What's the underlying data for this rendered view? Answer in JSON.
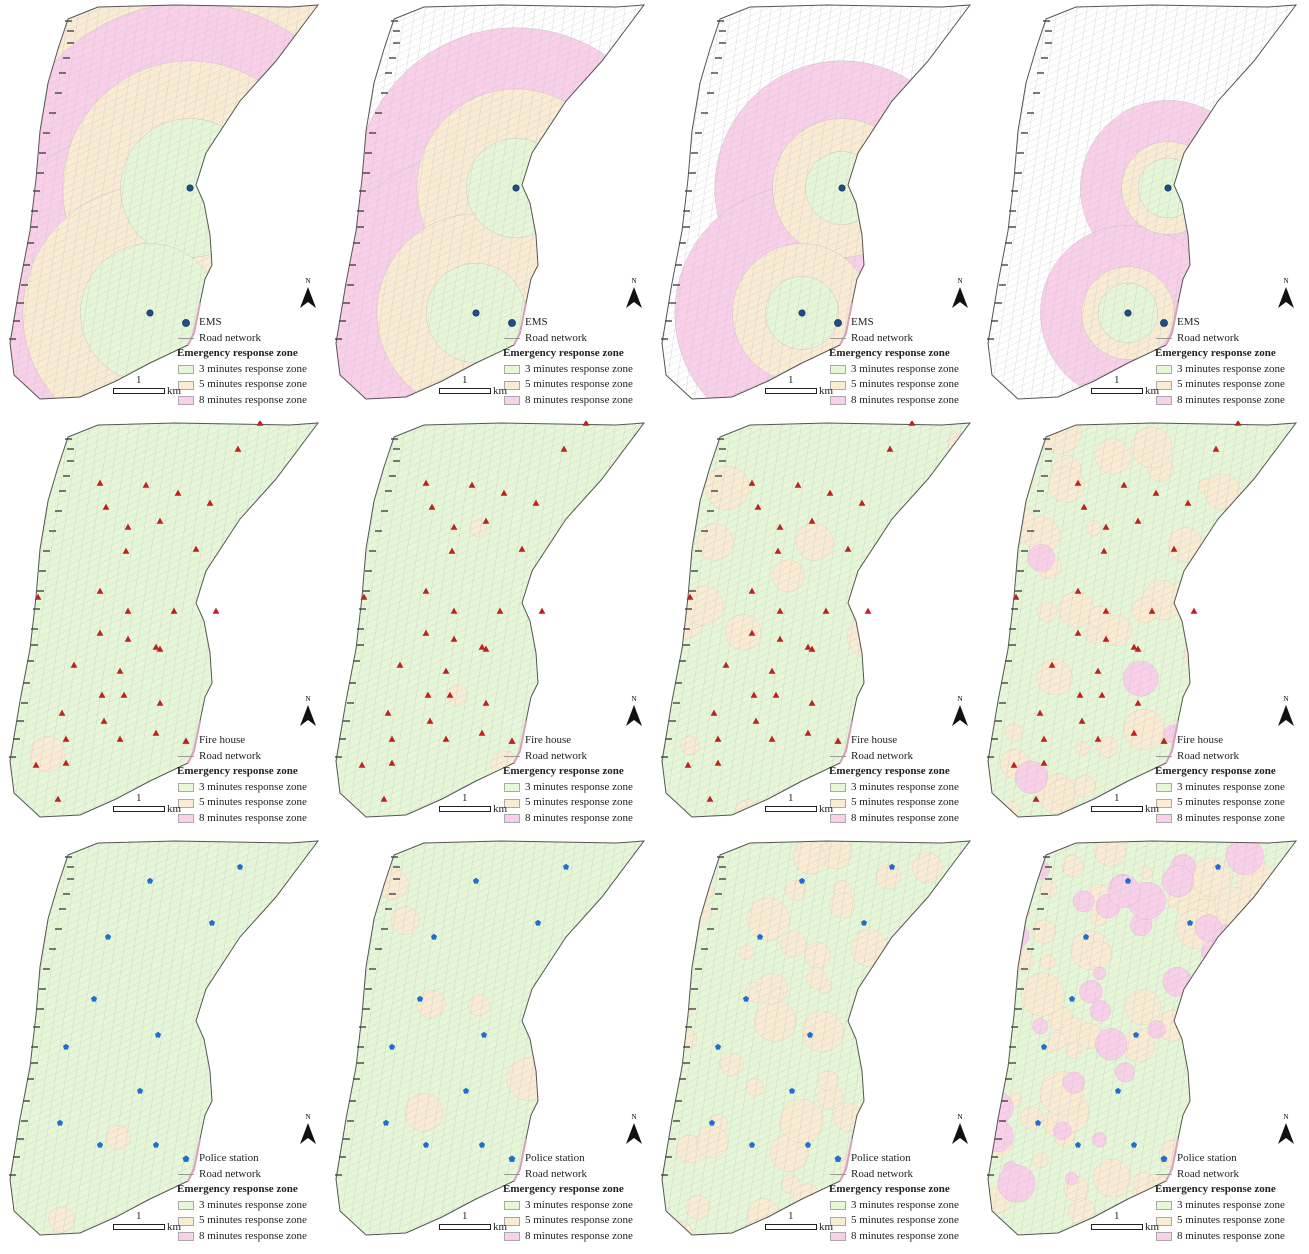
{
  "rows": [
    {
      "facility_label": "EMS",
      "facility_symbol": "circle",
      "facility_color": "#1f4e8c",
      "panels": [
        {
          "coverage": {
            "zone3": 0.3,
            "zone5": 0.35,
            "zone8": 0.35,
            "none": 0.0
          }
        },
        {
          "coverage": {
            "zone3": 0.18,
            "zone5": 0.3,
            "zone8": 0.37,
            "none": 0.15
          }
        },
        {
          "coverage": {
            "zone3": 0.1,
            "zone5": 0.2,
            "zone8": 0.35,
            "none": 0.35
          }
        },
        {
          "coverage": {
            "zone3": 0.06,
            "zone5": 0.1,
            "zone8": 0.25,
            "none": 0.59
          }
        }
      ]
    },
    {
      "facility_label": "Fire house",
      "facility_symbol": "triangle",
      "facility_color": "#c0201e",
      "panels": [
        {
          "coverage": {
            "zone3": 0.99,
            "zone5": 0.01,
            "zone8": 0.0,
            "none": 0.0
          }
        },
        {
          "coverage": {
            "zone3": 0.98,
            "zone5": 0.02,
            "zone8": 0.0,
            "none": 0.0
          }
        },
        {
          "coverage": {
            "zone3": 0.9,
            "zone5": 0.1,
            "zone8": 0.0,
            "none": 0.0
          }
        },
        {
          "coverage": {
            "zone3": 0.6,
            "zone5": 0.35,
            "zone8": 0.05,
            "none": 0.0
          }
        }
      ]
    },
    {
      "facility_label": "Police station",
      "facility_symbol": "pentagon",
      "facility_color": "#1f6fd1",
      "panels": [
        {
          "coverage": {
            "zone3": 0.98,
            "zone5": 0.02,
            "zone8": 0.0,
            "none": 0.0
          }
        },
        {
          "coverage": {
            "zone3": 0.92,
            "zone5": 0.08,
            "zone8": 0.0,
            "none": 0.0
          }
        },
        {
          "coverage": {
            "zone3": 0.6,
            "zone5": 0.4,
            "zone8": 0.0,
            "none": 0.0
          }
        },
        {
          "coverage": {
            "zone3": 0.3,
            "zone5": 0.45,
            "zone8": 0.25,
            "none": 0.0
          }
        }
      ]
    }
  ],
  "legend": {
    "road_label": "Road network",
    "zone_title": "Emergency response zone",
    "zones": [
      {
        "key": "zone3",
        "label": "3 minutes response zone",
        "color": "#e6f7d8"
      },
      {
        "key": "zone5",
        "label": "5 minutes response zone",
        "color": "#faebd3"
      },
      {
        "key": "zone8",
        "label": "8 minutes response zone",
        "color": "#f9cfe9"
      }
    ]
  },
  "scale_bar": {
    "value": "1",
    "unit": "km"
  },
  "north_label": "N",
  "colors": {
    "road": "#c8c8c8",
    "outline": "#555555",
    "shore": "#d7a0b8"
  }
}
